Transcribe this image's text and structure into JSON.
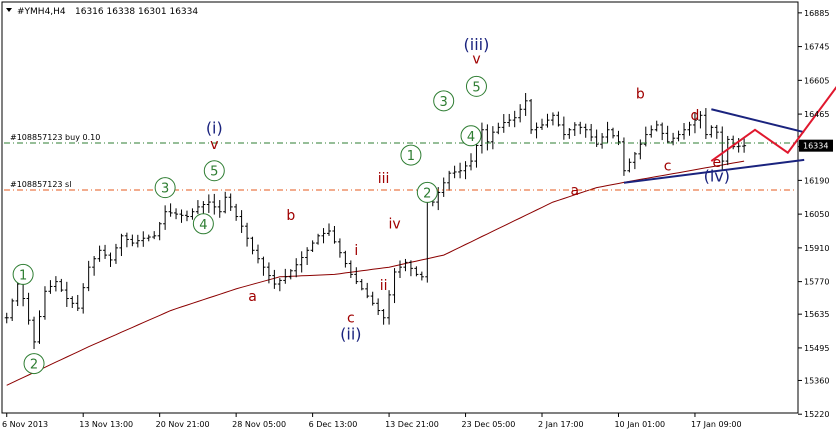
{
  "header": {
    "symbol": "#YMH4,H4",
    "ohlc": "16316 16338 16301 16334"
  },
  "chart_data": {
    "type": "line",
    "title": "#YMH4,H4",
    "colors": {
      "bars": "#000000",
      "ma": "#8b0000",
      "buy_line": "#2e7d32",
      "sl_line": "#e65a1e",
      "wave_green": "#2e7d32",
      "wave_red": "#a00000",
      "wave_navy": "#1a237e",
      "projection": "#e0182e",
      "current_price_box": "#000000"
    },
    "ylim": [
      15225,
      16930
    ],
    "y_ticks": [
      "16885",
      "16745",
      "16605",
      "16465",
      "16330",
      "16190",
      "16050",
      "15910",
      "15770",
      "15635",
      "15495",
      "15360",
      "15220"
    ],
    "y_tick_values": [
      16885,
      16745,
      16605,
      16465,
      16330,
      16190,
      16050,
      15910,
      15770,
      15635,
      15495,
      15360,
      15220
    ],
    "x_ticks": [
      "6 Nov 2013",
      "13 Nov 13:00",
      "20 Nov 21:00",
      "28 Nov 05:00",
      "6 Dec 13:00",
      "13 Dec 21:00",
      "23 Dec 05:00",
      "2 Jan 17:00",
      "10 Jan 01:00",
      "17 Jan 09:00"
    ],
    "x_tick_bars": [
      0,
      14,
      28,
      42,
      56,
      70,
      84,
      98,
      112,
      126
    ],
    "current_price": "16334",
    "current_price_value": 16334,
    "bars_total": 145,
    "last_bar": 135,
    "price_path": [
      [
        0,
        15620
      ],
      [
        2,
        15760
      ],
      [
        3,
        15700
      ],
      [
        5,
        15520
      ],
      [
        7,
        15730
      ],
      [
        9,
        15770
      ],
      [
        11,
        15700
      ],
      [
        13,
        15660
      ],
      [
        15,
        15830
      ],
      [
        17,
        15900
      ],
      [
        19,
        15860
      ],
      [
        21,
        15960
      ],
      [
        23,
        15930
      ],
      [
        25,
        15950
      ],
      [
        27,
        15960
      ],
      [
        29,
        16060
      ],
      [
        31,
        16050
      ],
      [
        33,
        16040
      ],
      [
        35,
        16080
      ],
      [
        37,
        16100
      ],
      [
        39,
        16060
      ],
      [
        40,
        16120
      ],
      [
        41,
        16080
      ],
      [
        43,
        16000
      ],
      [
        45,
        15900
      ],
      [
        47,
        15830
      ],
      [
        49,
        15760
      ],
      [
        51,
        15790
      ],
      [
        53,
        15840
      ],
      [
        55,
        15900
      ],
      [
        57,
        15960
      ],
      [
        59,
        15980
      ],
      [
        61,
        15890
      ],
      [
        63,
        15800
      ],
      [
        65,
        15740
      ],
      [
        67,
        15680
      ],
      [
        69,
        15620
      ],
      [
        71,
        15810
      ],
      [
        73,
        15850
      ],
      [
        75,
        15800
      ],
      [
        76,
        15790
      ],
      [
        77,
        16150
      ],
      [
        78,
        16100
      ],
      [
        79,
        16140
      ],
      [
        81,
        16220
      ],
      [
        83,
        16230
      ],
      [
        85,
        16270
      ],
      [
        87,
        16400
      ],
      [
        88,
        16350
      ],
      [
        89,
        16390
      ],
      [
        91,
        16430
      ],
      [
        93,
        16450
      ],
      [
        95,
        16520
      ],
      [
        96,
        16400
      ],
      [
        98,
        16420
      ],
      [
        100,
        16460
      ],
      [
        102,
        16380
      ],
      [
        104,
        16420
      ],
      [
        106,
        16400
      ],
      [
        108,
        16340
      ],
      [
        110,
        16400
      ],
      [
        112,
        16350
      ],
      [
        113,
        16230
      ],
      [
        115,
        16300
      ],
      [
        117,
        16380
      ],
      [
        119,
        16420
      ],
      [
        121,
        16350
      ],
      [
        123,
        16380
      ],
      [
        125,
        16420
      ],
      [
        127,
        16460
      ],
      [
        128,
        16380
      ],
      [
        129,
        16410
      ],
      [
        130,
        16390
      ],
      [
        131,
        16270
      ],
      [
        132,
        16360
      ],
      [
        133,
        16330
      ],
      [
        135,
        16334
      ]
    ],
    "ma_path": [
      [
        0,
        15340
      ],
      [
        15,
        15500
      ],
      [
        30,
        15650
      ],
      [
        42,
        15740
      ],
      [
        50,
        15790
      ],
      [
        60,
        15800
      ],
      [
        70,
        15830
      ],
      [
        80,
        15880
      ],
      [
        90,
        15990
      ],
      [
        100,
        16100
      ],
      [
        108,
        16160
      ],
      [
        115,
        16190
      ],
      [
        125,
        16230
      ],
      [
        135,
        16270
      ]
    ],
    "h_lines": [
      {
        "label": "#108857123 buy 0.10",
        "value": 16345,
        "style": "buy"
      },
      {
        "label": "#108857123 sl",
        "value": 16150,
        "style": "sl"
      }
    ],
    "trendlines": [
      {
        "from": [
          113,
          16180
        ],
        "to": [
          146,
          16275
        ]
      },
      {
        "from": [
          129,
          16485
        ],
        "to": [
          146,
          16390
        ]
      }
    ],
    "projection": [
      [
        129,
        16270
      ],
      [
        137,
        16400
      ],
      [
        143,
        16305
      ],
      [
        153,
        16610
      ]
    ],
    "wave_labels": [
      {
        "text": "1",
        "style": "circle",
        "x": 3,
        "y": 15800
      },
      {
        "text": "2",
        "style": "circle",
        "x": 5,
        "y": 15430
      },
      {
        "text": "3",
        "style": "circle",
        "x": 29,
        "y": 16160
      },
      {
        "text": "4",
        "style": "circle",
        "x": 36,
        "y": 16010
      },
      {
        "text": "5",
        "style": "circle",
        "x": 38,
        "y": 16230
      },
      {
        "text": "(i)",
        "style": "navy",
        "x": 38,
        "y": 16385
      },
      {
        "text": "v",
        "style": "red",
        "x": 38,
        "y": 16320
      },
      {
        "text": "a",
        "style": "red",
        "x": 45,
        "y": 15690
      },
      {
        "text": "b",
        "style": "red",
        "x": 52,
        "y": 16025
      },
      {
        "text": "c",
        "style": "red",
        "x": 63,
        "y": 15600
      },
      {
        "text": "(ii)",
        "style": "navy",
        "x": 63,
        "y": 15530
      },
      {
        "text": "i",
        "style": "red",
        "x": 64,
        "y": 15880
      },
      {
        "text": "ii",
        "style": "red",
        "x": 69,
        "y": 15735
      },
      {
        "text": "iii",
        "style": "red",
        "x": 69,
        "y": 16180
      },
      {
        "text": "iv",
        "style": "red",
        "x": 71,
        "y": 15990
      },
      {
        "text": "1",
        "style": "circle",
        "x": 74,
        "y": 16295
      },
      {
        "text": "2",
        "style": "circle",
        "x": 77,
        "y": 16140
      },
      {
        "text": "3",
        "style": "circle",
        "x": 80,
        "y": 16520
      },
      {
        "text": "4",
        "style": "circle",
        "x": 85,
        "y": 16375
      },
      {
        "text": "5",
        "style": "circle",
        "x": 86,
        "y": 16580
      },
      {
        "text": "(iii)",
        "style": "navy",
        "x": 86,
        "y": 16730
      },
      {
        "text": "v",
        "style": "red",
        "x": 86,
        "y": 16675
      },
      {
        "text": "a",
        "style": "red",
        "x": 104,
        "y": 16130
      },
      {
        "text": "b",
        "style": "red",
        "x": 116,
        "y": 16530
      },
      {
        "text": "c",
        "style": "red",
        "x": 121,
        "y": 16230
      },
      {
        "text": "d",
        "style": "red",
        "x": 126,
        "y": 16440
      },
      {
        "text": "e",
        "style": "red",
        "x": 130,
        "y": 16245
      },
      {
        "text": "(iv)",
        "style": "navy",
        "x": 130,
        "y": 16185
      }
    ]
  }
}
